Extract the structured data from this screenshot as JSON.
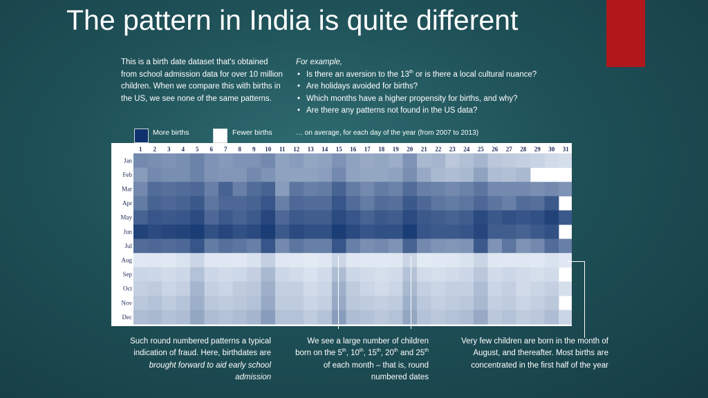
{
  "title": "The pattern in India is quite different",
  "intro_text": "This is a birth date dataset that's obtained from school admission data for over 10 million children. When we compare this with births in the US, we see none of the same patterns.",
  "examples": {
    "heading": "For example,",
    "items": [
      {
        "before": "Is there an aversion to the 13",
        "sup": "th",
        "after": " or is there a local cultural nuance?"
      },
      {
        "before": "Are holidays avoided for births?",
        "sup": "",
        "after": ""
      },
      {
        "before": "Which months have a higher propensity for births, and why?",
        "sup": "",
        "after": ""
      },
      {
        "before": "Are there any patterns not found in the US data?",
        "sup": "",
        "after": ""
      }
    ]
  },
  "legend": {
    "more_label": "More births",
    "more_color": "#10336f",
    "fewer_label": "Fewer births",
    "fewer_color": "#ffffff"
  },
  "chart_data": {
    "type": "heatmap",
    "subtitle": "… on average, for each day of the year (from 2007 to 2013)",
    "x": [
      "1",
      "2",
      "3",
      "4",
      "5",
      "6",
      "7",
      "8",
      "9",
      "10",
      "11",
      "12",
      "13",
      "14",
      "15",
      "16",
      "17",
      "18",
      "19",
      "20",
      "21",
      "22",
      "23",
      "24",
      "25",
      "26",
      "27",
      "28",
      "29",
      "30",
      "31"
    ],
    "y": [
      "Jan",
      "Feb",
      "Mar",
      "Apr",
      "May",
      "Jun",
      "Jul",
      "Aug",
      "Sep",
      "Oct",
      "Nov",
      "Dec"
    ],
    "value_scale": "0 = fewer births, 1 = more births",
    "values": [
      [
        0.55,
        0.52,
        0.5,
        0.52,
        0.58,
        0.5,
        0.46,
        0.5,
        0.5,
        0.55,
        0.42,
        0.45,
        0.4,
        0.42,
        0.5,
        0.42,
        0.38,
        0.4,
        0.36,
        0.5,
        0.3,
        0.32,
        0.22,
        0.26,
        0.32,
        0.22,
        0.2,
        0.18,
        0.16,
        0.12,
        0.1
      ],
      [
        0.45,
        0.55,
        0.52,
        0.52,
        0.58,
        0.5,
        0.48,
        0.48,
        0.55,
        0.5,
        0.42,
        0.42,
        0.42,
        0.44,
        0.55,
        0.42,
        0.4,
        0.4,
        0.42,
        0.52,
        0.38,
        0.3,
        0.28,
        0.3,
        0.42,
        0.28,
        0.26,
        0.3,
        null,
        null,
        null
      ],
      [
        0.55,
        0.7,
        0.68,
        0.7,
        0.72,
        0.6,
        0.75,
        0.6,
        0.7,
        0.75,
        0.45,
        0.65,
        0.6,
        0.62,
        0.75,
        0.62,
        0.55,
        0.62,
        0.58,
        0.7,
        0.6,
        0.58,
        0.55,
        0.58,
        0.65,
        0.55,
        0.55,
        0.55,
        0.52,
        0.55,
        0.5
      ],
      [
        0.62,
        0.75,
        0.72,
        0.75,
        0.8,
        0.65,
        0.72,
        0.72,
        0.75,
        0.82,
        0.6,
        0.72,
        0.7,
        0.7,
        0.82,
        0.7,
        0.62,
        0.7,
        0.68,
        0.8,
        0.72,
        0.65,
        0.62,
        0.65,
        0.72,
        0.65,
        0.6,
        0.7,
        0.68,
        0.8,
        null
      ],
      [
        0.75,
        0.82,
        0.8,
        0.82,
        0.88,
        0.72,
        0.8,
        0.75,
        0.8,
        0.9,
        0.72,
        0.8,
        0.78,
        0.78,
        0.88,
        0.82,
        0.75,
        0.8,
        0.78,
        0.88,
        0.8,
        0.78,
        0.75,
        0.78,
        0.88,
        0.8,
        0.85,
        0.82,
        0.85,
        0.92,
        0.8
      ],
      [
        0.92,
        0.88,
        0.9,
        0.92,
        0.95,
        0.85,
        0.9,
        0.85,
        0.88,
        0.95,
        0.8,
        0.88,
        0.85,
        0.85,
        0.95,
        0.88,
        0.82,
        0.85,
        0.85,
        0.95,
        0.82,
        0.8,
        0.8,
        0.82,
        0.9,
        0.78,
        0.78,
        0.75,
        0.8,
        0.85,
        null
      ],
      [
        0.7,
        0.72,
        0.7,
        0.72,
        0.82,
        0.62,
        0.68,
        0.65,
        0.6,
        0.82,
        0.55,
        0.65,
        0.6,
        0.6,
        0.82,
        0.6,
        0.52,
        0.55,
        0.5,
        0.75,
        0.55,
        0.5,
        0.48,
        0.5,
        0.8,
        0.5,
        0.65,
        0.5,
        0.55,
        0.7,
        0.6
      ],
      [
        0.05,
        0.06,
        0.05,
        0.08,
        0.15,
        0.06,
        0.06,
        0.05,
        0.08,
        0.18,
        0.06,
        0.05,
        0.04,
        0.06,
        0.15,
        0.06,
        0.05,
        0.05,
        0.06,
        0.15,
        0.04,
        0.05,
        0.06,
        0.08,
        0.15,
        0.06,
        0.05,
        0.06,
        0.05,
        0.08,
        0.05
      ],
      [
        0.15,
        0.14,
        0.12,
        0.14,
        0.25,
        0.14,
        0.12,
        0.14,
        0.18,
        0.3,
        0.14,
        0.12,
        0.08,
        0.12,
        0.28,
        0.14,
        0.12,
        0.1,
        0.12,
        0.25,
        0.12,
        0.1,
        0.12,
        0.14,
        0.22,
        0.12,
        0.14,
        0.12,
        0.1,
        0.12,
        null
      ],
      [
        0.18,
        0.2,
        0.15,
        0.18,
        0.32,
        0.18,
        0.15,
        0.2,
        0.22,
        0.35,
        0.18,
        0.18,
        0.12,
        0.15,
        0.35,
        0.2,
        0.15,
        0.12,
        0.15,
        0.3,
        0.18,
        0.15,
        0.18,
        0.18,
        0.28,
        0.15,
        0.18,
        0.12,
        0.15,
        0.18,
        0.1
      ],
      [
        0.22,
        0.25,
        0.2,
        0.24,
        0.35,
        0.22,
        0.2,
        0.22,
        0.25,
        0.38,
        0.2,
        0.2,
        0.15,
        0.18,
        0.38,
        0.22,
        0.2,
        0.18,
        0.2,
        0.35,
        0.22,
        0.18,
        0.2,
        0.22,
        0.3,
        0.18,
        0.2,
        0.15,
        0.18,
        0.22,
        null
      ],
      [
        0.28,
        0.3,
        0.25,
        0.28,
        0.4,
        0.28,
        0.25,
        0.28,
        0.32,
        0.45,
        0.25,
        0.25,
        0.2,
        0.25,
        0.45,
        0.28,
        0.25,
        0.22,
        0.25,
        0.4,
        0.25,
        0.22,
        0.25,
        0.28,
        0.38,
        0.22,
        0.25,
        0.2,
        0.22,
        0.28,
        0.15
      ]
    ]
  },
  "callouts": {
    "left": {
      "line1": "Such round numbered patterns a typical indication of fraud. Here, birthdates are ",
      "emph": "brought forward to aid early school admission"
    },
    "middle": {
      "part1": "We see a large number of children born on the 5",
      "sup1": "th",
      "part2": ", 10",
      "sup2": "th",
      "part3": ", 15",
      "sup3": "th",
      "part4": ", 20",
      "sup4": "th",
      "part5": " and 25",
      "sup5": "th",
      "part6": " of each month – that is, round numbered dates"
    },
    "right": {
      "text": "Very few children are born in the month of August, and thereafter. Most births are concentrated in the first half of the year"
    }
  }
}
